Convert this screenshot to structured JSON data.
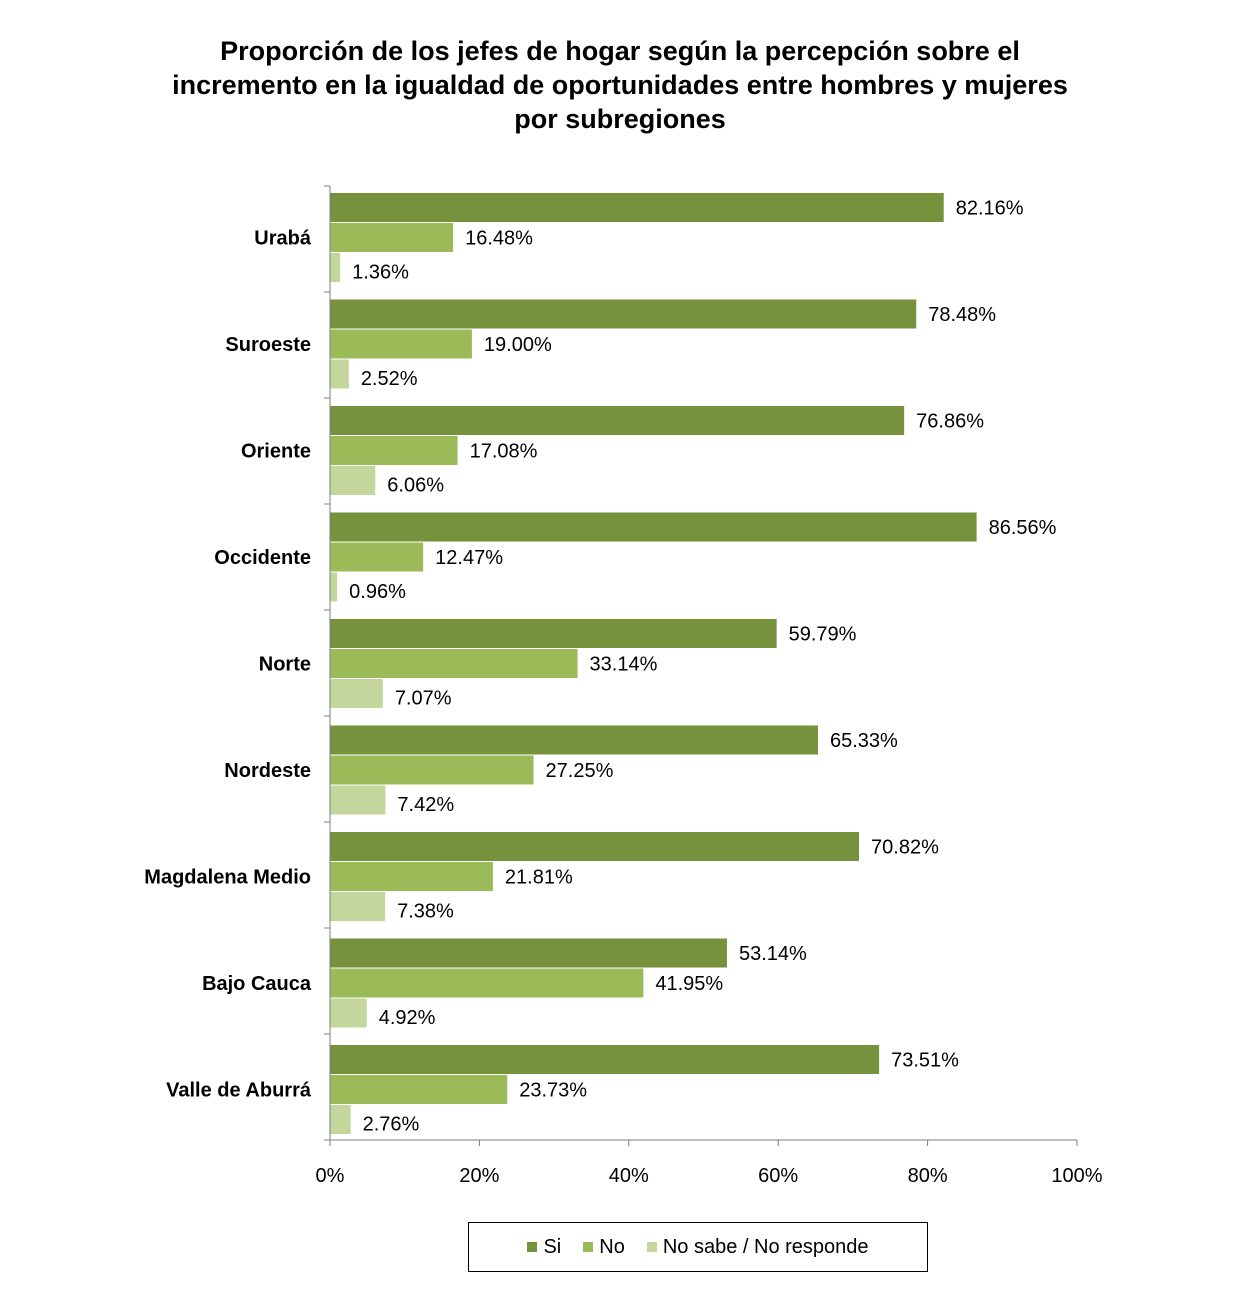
{
  "chart_data": {
    "type": "bar",
    "orientation": "horizontal",
    "title": "Proporción de los jefes de hogar según la percepción sobre el incremento en la igualdad de oportunidades entre hombres y mujeres por subregiones",
    "title_lines": [
      "Proporción de los jefes de hogar según la percepción sobre el",
      "incremento en la igualdad de oportunidades entre hombres y mujeres",
      "por subregiones"
    ],
    "categories": [
      "Urabá",
      "Suroeste",
      "Oriente",
      "Occidente",
      "Norte",
      "Nordeste",
      "Magdalena Medio",
      "Bajo Cauca",
      "Valle de Aburrá"
    ],
    "series": [
      {
        "name": "Si",
        "color": "#76923C",
        "values": [
          82.16,
          78.48,
          76.86,
          86.56,
          59.79,
          65.33,
          70.82,
          53.14,
          73.51
        ],
        "labels": [
          "82.16%",
          "78.48%",
          "76.86%",
          "86.56%",
          "59.79%",
          "65.33%",
          "70.82%",
          "53.14%",
          "73.51%"
        ]
      },
      {
        "name": "No",
        "color": "#9BBB59",
        "values": [
          16.48,
          19.0,
          17.08,
          12.47,
          33.14,
          27.25,
          21.81,
          41.95,
          23.73
        ],
        "labels": [
          "16.48%",
          "19.00%",
          "17.08%",
          "12.47%",
          "33.14%",
          "27.25%",
          "21.81%",
          "41.95%",
          "23.73%"
        ]
      },
      {
        "name": "No sabe / No responde",
        "color": "#C3D69B",
        "values": [
          1.36,
          2.52,
          6.06,
          0.96,
          7.07,
          7.42,
          7.38,
          4.92,
          2.76
        ],
        "labels": [
          "1.36%",
          "2.52%",
          "6.06%",
          "0.96%",
          "7.07%",
          "7.42%",
          "7.38%",
          "4.92%",
          "2.76%"
        ]
      }
    ],
    "xlim": [
      0,
      100
    ],
    "x_ticks": [
      0,
      20,
      40,
      60,
      80,
      100
    ],
    "x_tick_labels": [
      "0%",
      "20%",
      "40%",
      "60%",
      "80%",
      "100%"
    ],
    "xlabel": "",
    "ylabel": "",
    "grid": false,
    "legend_position": "bottom"
  }
}
